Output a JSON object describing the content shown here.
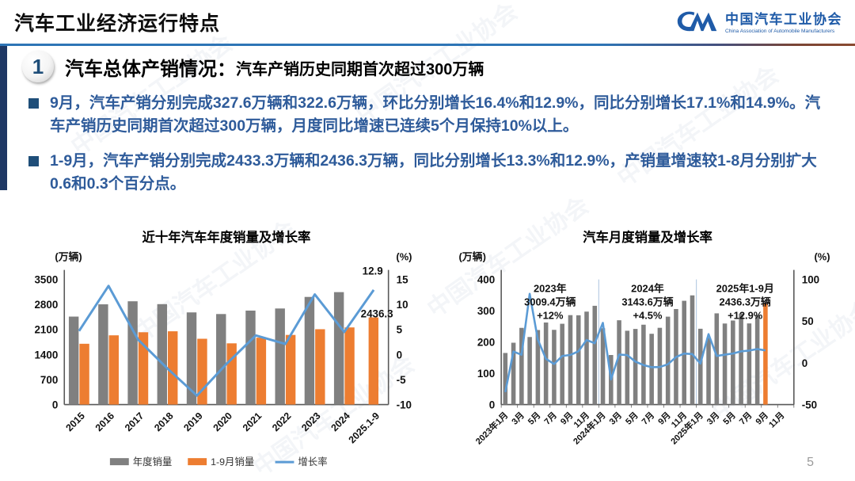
{
  "header": {
    "title": "汽车工业经济运行特点",
    "logo": {
      "mark": "CM",
      "name_cn": "中国汽车工业协会",
      "name_en": "China Association of Automobile Manufacturers"
    }
  },
  "section": {
    "number": "1",
    "title": "汽车总体产销情况：",
    "subtitle": "汽车产销历史同期首次超过300万辆"
  },
  "bullets": [
    "9月，汽车产销分别完成327.6万辆和322.6万辆，环比分别增长16.4%和12.9%，同比分别增长17.1%和14.9%。汽车产销历史同期首次超过300万辆，月度同比增速已连续5个月保持10%以上。",
    "1-9月，汽车产销分别完成2433.3万辆和2436.3万辆，同比分别增长13.3%和12.9%，产销量增速较1-8月分别扩大0.6和0.3个百分点。"
  ],
  "page_number": "5",
  "watermark": "中国汽车工业协会",
  "colors": {
    "bar_gray": "#808080",
    "bar_orange": "#ED7D31",
    "line_blue": "#5B9BD5",
    "text_navy": "#2E5B9A",
    "accent_navy": "#1F3864",
    "divider_blue": "#2E75B6"
  },
  "chart_data": [
    {
      "type": "bar+line",
      "title": "近十年汽车年度销量及增长率",
      "left_axis_label": "(万辆)",
      "right_axis_label": "(%)",
      "categories": [
        "2015",
        "2016",
        "2017",
        "2018",
        "2019",
        "2020",
        "2021",
        "2022",
        "2023",
        "2024",
        "2025.1-9"
      ],
      "series": [
        {
          "name": "年度销量",
          "type": "bar",
          "color": "#808080",
          "values": [
            2459.8,
            2802.8,
            2887.9,
            2808.1,
            2576.9,
            2531.1,
            2627.5,
            2686.4,
            3009.4,
            3143.6,
            null
          ]
        },
        {
          "name": "1-9月销量",
          "type": "bar",
          "color": "#ED7D31",
          "values": [
            1700,
            1936,
            2022,
            2049,
            1840,
            1712,
            1870,
            1947,
            2107,
            2157,
            2436.3
          ]
        },
        {
          "name": "增长率",
          "type": "line",
          "color": "#5B9BD5",
          "values": [
            4.7,
            13.7,
            3.0,
            -2.8,
            -8.2,
            -1.9,
            3.8,
            2.1,
            12.0,
            4.5,
            12.9
          ]
        }
      ],
      "left_ticks": [
        0,
        700,
        1400,
        2100,
        2800,
        3500
      ],
      "right_ticks": [
        -10,
        -5,
        0,
        5,
        10,
        15
      ],
      "annotations": [
        {
          "text": "12.9"
        },
        {
          "text": "2436.3"
        }
      ],
      "legend": [
        "年度销量",
        "1-9月销量",
        "增长率"
      ]
    },
    {
      "type": "bar+line",
      "title": "汽车月度销量及增长率",
      "left_axis_label": "(万辆)",
      "right_axis_label": "(%)",
      "slots": 36,
      "x_labels": [
        "2023年1月",
        "3月",
        "5月",
        "7月",
        "9月",
        "11月",
        "2024年1月",
        "3月",
        "5月",
        "7月",
        "9月",
        "11月",
        "2025年1月",
        "3月",
        "5月",
        "7月",
        "9月",
        "11月"
      ],
      "bars": {
        "name": "月度销量",
        "color_default": "#808080",
        "color_last": "#ED7D31",
        "values": [
          164.9,
          197.6,
          245.1,
          215.9,
          238.2,
          262.2,
          238.8,
          258.2,
          285.8,
          285.3,
          297.0,
          315.6,
          243.9,
          158.4,
          269.4,
          235.9,
          241.7,
          255.2,
          226.2,
          245.3,
          280.9,
          305.3,
          331.6,
          348.9,
          242.3,
          212.9,
          291.5,
          259.0,
          268.6,
          290.4,
          259.3,
          285.7,
          322.6
        ]
      },
      "line": {
        "name": "增长率",
        "color": "#5B9BD5",
        "values": [
          -35.0,
          13.5,
          9.7,
          82.7,
          27.9,
          4.8,
          -1.4,
          8.2,
          9.5,
          13.8,
          27.4,
          23.5,
          47.9,
          -19.9,
          9.9,
          9.3,
          1.5,
          -2.7,
          -5.2,
          -5.0,
          -1.7,
          7.0,
          11.1,
          10.5,
          -0.8,
          34.4,
          8.2,
          9.8,
          11.2,
          13.8,
          14.7,
          16.5,
          14.9
        ]
      },
      "left_ticks": [
        0,
        100,
        200,
        300,
        400
      ],
      "right_ticks": [
        -50,
        0,
        50,
        100
      ],
      "annotations": [
        {
          "lines": [
            "2023年",
            "3009.4万辆",
            "+12%"
          ]
        },
        {
          "lines": [
            "2024年",
            "3143.6万辆",
            "+4.5%"
          ]
        },
        {
          "lines": [
            "2025年1-9月",
            "2436.3万辆",
            "+12.9%"
          ]
        }
      ]
    }
  ]
}
